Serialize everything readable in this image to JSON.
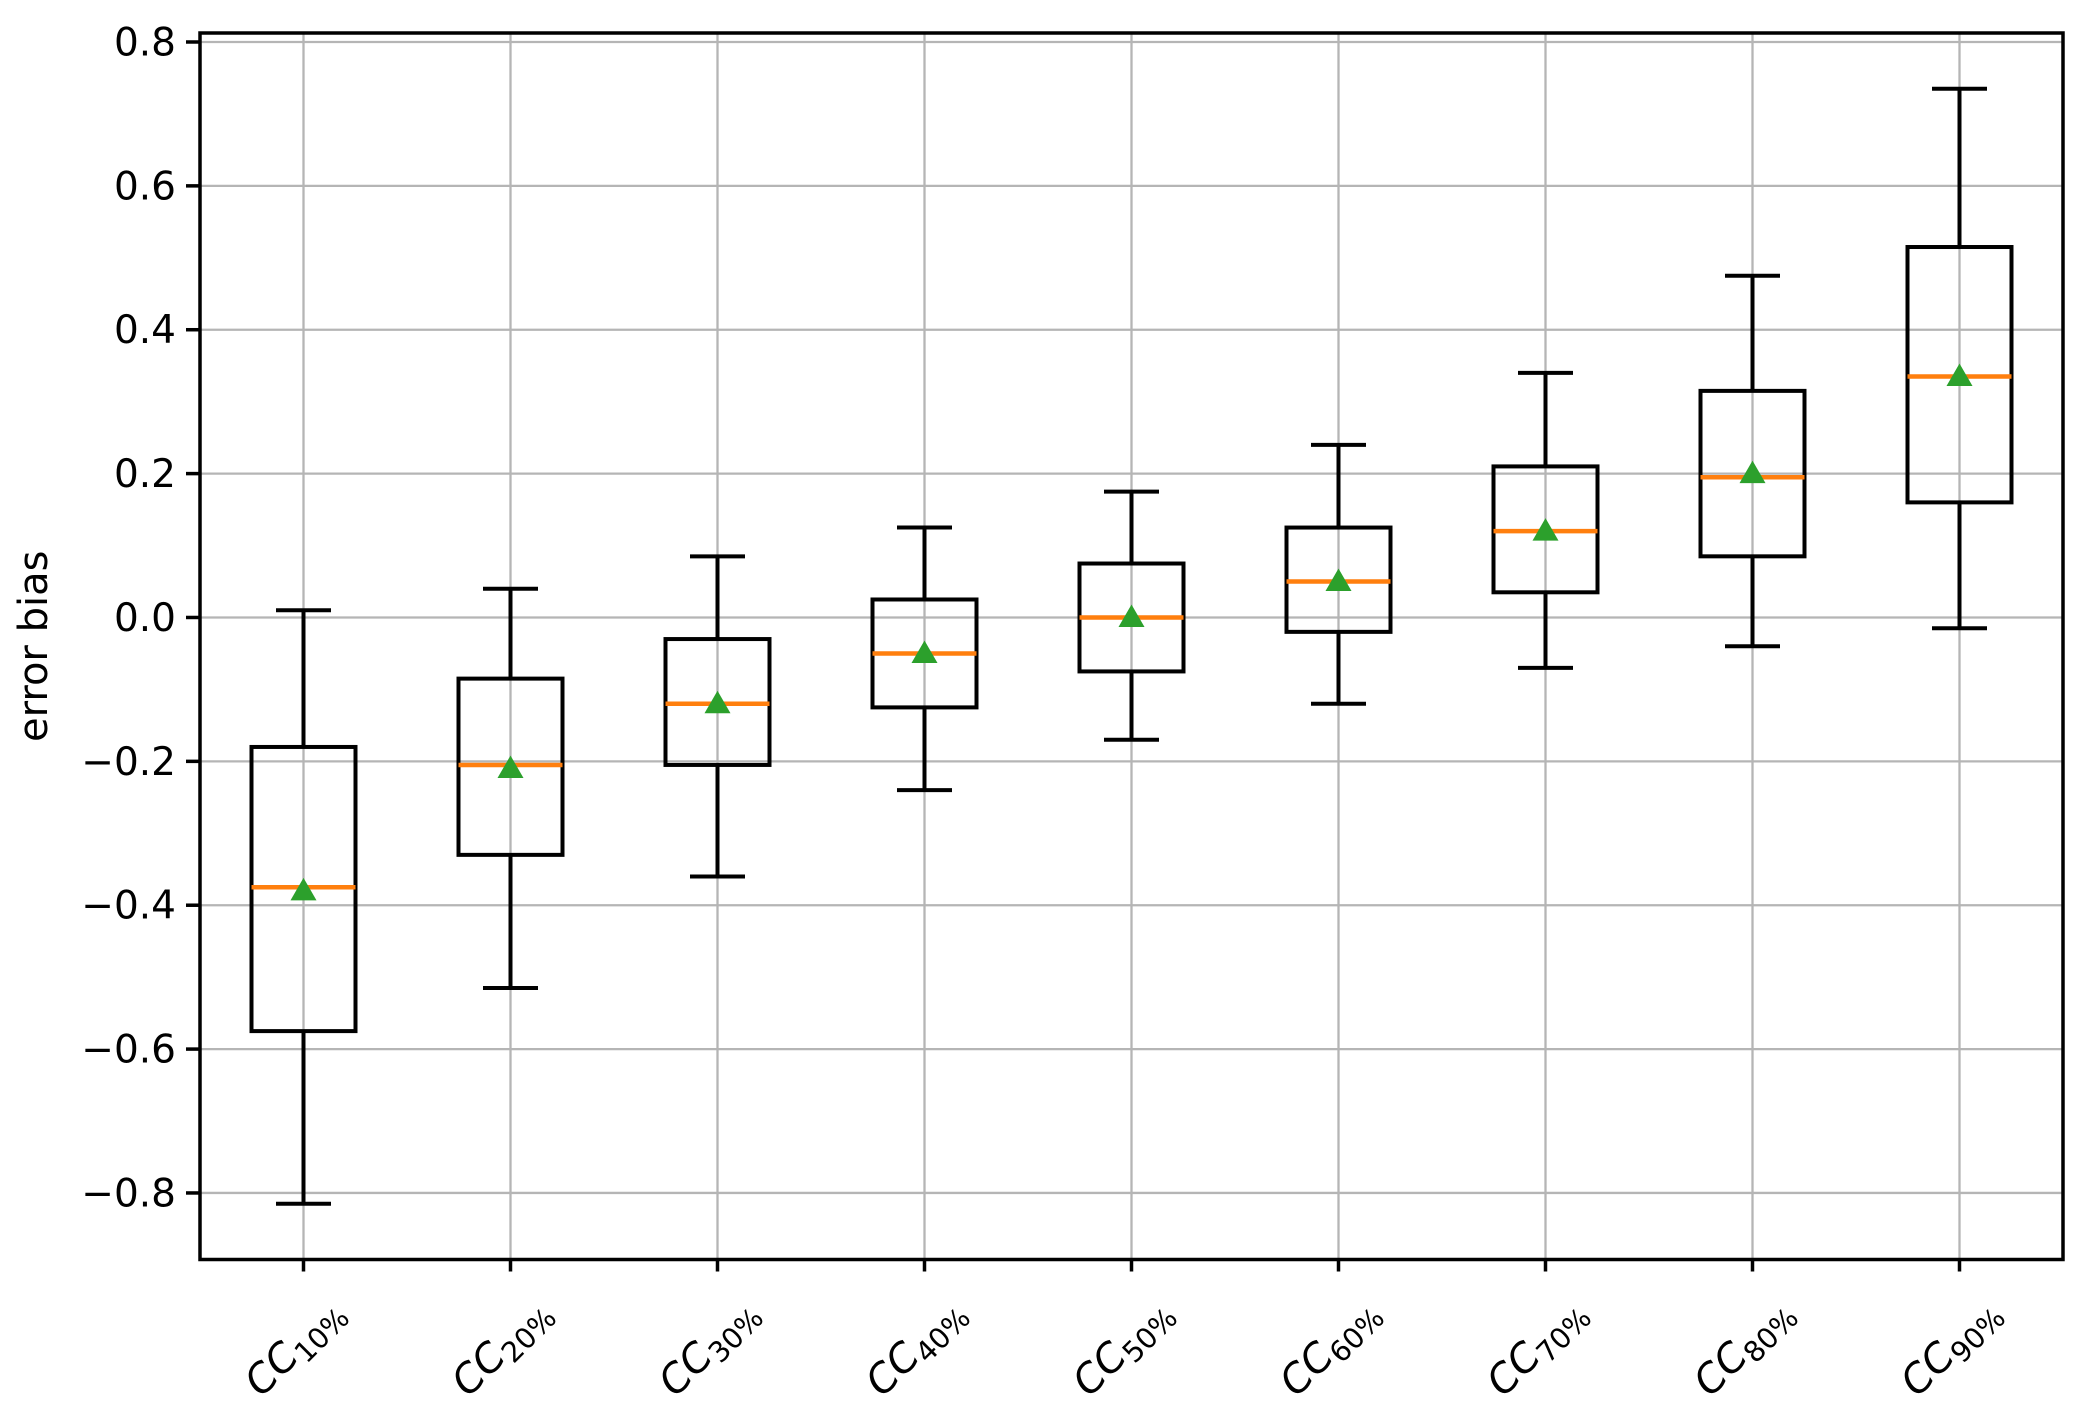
{
  "figure": {
    "background": "#ffffff",
    "title": ""
  },
  "chart_data": {
    "type": "boxplot",
    "title": "",
    "xlabel": "",
    "ylabel": "error bias",
    "grid": true,
    "legend": false,
    "ylim": [
      -0.8925,
      0.8125
    ],
    "yticks": [
      0.8,
      0.6,
      0.4,
      0.2,
      0.0,
      -0.2,
      -0.4,
      -0.6,
      -0.8
    ],
    "ytick_labels": [
      "0.8",
      "0.6",
      "0.4",
      "0.2",
      "0.0",
      "−0.2",
      "−0.4",
      "−0.6",
      "−0.8"
    ],
    "categories": [
      {
        "base": "CC",
        "subscript": "10%"
      },
      {
        "base": "CC",
        "subscript": "20%"
      },
      {
        "base": "CC",
        "subscript": "30%"
      },
      {
        "base": "CC",
        "subscript": "40%"
      },
      {
        "base": "CC",
        "subscript": "50%"
      },
      {
        "base": "CC",
        "subscript": "60%"
      },
      {
        "base": "CC",
        "subscript": "70%"
      },
      {
        "base": "CC",
        "subscript": "80%"
      },
      {
        "base": "CC",
        "subscript": "90%"
      }
    ],
    "series": [
      {
        "label": "CC10%",
        "whislo": -0.815,
        "q1": -0.575,
        "med": -0.375,
        "mean": -0.38,
        "q3": -0.18,
        "whishi": 0.01
      },
      {
        "label": "CC20%",
        "whislo": -0.515,
        "q1": -0.33,
        "med": -0.205,
        "mean": -0.21,
        "q3": -0.085,
        "whishi": 0.04
      },
      {
        "label": "CC30%",
        "whislo": -0.36,
        "q1": -0.205,
        "med": -0.12,
        "mean": -0.12,
        "q3": -0.03,
        "whishi": 0.085
      },
      {
        "label": "CC40%",
        "whislo": -0.24,
        "q1": -0.125,
        "med": -0.05,
        "mean": -0.05,
        "q3": 0.025,
        "whishi": 0.125
      },
      {
        "label": "CC50%",
        "whislo": -0.17,
        "q1": -0.075,
        "med": 0.0,
        "mean": 0.0,
        "q3": 0.075,
        "whishi": 0.175
      },
      {
        "label": "CC60%",
        "whislo": -0.12,
        "q1": -0.02,
        "med": 0.05,
        "mean": 0.05,
        "q3": 0.125,
        "whishi": 0.24
      },
      {
        "label": "CC70%",
        "whislo": -0.07,
        "q1": 0.035,
        "med": 0.12,
        "mean": 0.12,
        "q3": 0.21,
        "whishi": 0.34
      },
      {
        "label": "CC80%",
        "whislo": -0.04,
        "q1": 0.085,
        "med": 0.195,
        "mean": 0.2,
        "q3": 0.315,
        "whishi": 0.475
      },
      {
        "label": "CC90%",
        "whislo": -0.015,
        "q1": 0.16,
        "med": 0.335,
        "mean": 0.335,
        "q3": 0.515,
        "whishi": 0.735
      }
    ],
    "colors": {
      "box": "#000000",
      "whisker": "#000000",
      "median": "#ff7f0e",
      "mean_marker": "#2ca02c",
      "grid": "#b5b5b5",
      "spine": "#000000"
    },
    "marker": {
      "mean_shape": "triangle-up"
    }
  }
}
